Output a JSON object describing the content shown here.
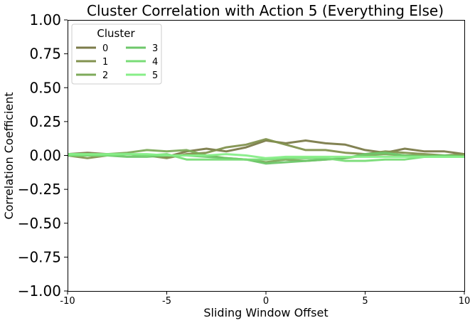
{
  "chart_data": {
    "type": "line",
    "title": "Cluster Correlation with Action 5 (Everything Else)",
    "xlabel": "Sliding Window Offset",
    "ylabel": "Correlation Coefficient",
    "xlim": [
      -10,
      10
    ],
    "ylim": [
      -1.0,
      1.0
    ],
    "xticks": [
      -10,
      -5,
      0,
      5,
      10
    ],
    "xtick_labels": [
      "-10",
      "-5",
      "0",
      "5",
      "10"
    ],
    "yticks": [
      1.0,
      0.75,
      0.5,
      0.25,
      0.0,
      -0.25,
      -0.5,
      -0.75,
      -1.0
    ],
    "ytick_labels": [
      "1.00",
      "0.75",
      "0.50",
      "0.25",
      "0.00",
      "−0.25",
      "−0.50",
      "−0.75",
      "−1.00"
    ],
    "grid": false,
    "legend": {
      "title": "Cluster",
      "placement": "top-left",
      "columns": 2
    },
    "x": [
      -10,
      -9,
      -8,
      -7,
      -6,
      -5,
      -4,
      -3,
      -2,
      -1,
      0,
      1,
      2,
      3,
      4,
      5,
      6,
      7,
      8,
      9,
      10
    ],
    "series": [
      {
        "name": "0",
        "color": "#7b7b4a",
        "values": [
          0.01,
          0.02,
          0.01,
          0.01,
          0.0,
          -0.01,
          0.03,
          0.05,
          0.03,
          0.06,
          0.11,
          0.09,
          0.11,
          0.09,
          0.08,
          0.04,
          0.02,
          0.05,
          0.03,
          0.03,
          0.01
        ]
      },
      {
        "name": "1",
        "color": "#82924f",
        "values": [
          0.0,
          -0.02,
          0.0,
          0.01,
          0.0,
          -0.02,
          0.01,
          0.02,
          0.06,
          0.08,
          0.12,
          0.08,
          0.04,
          0.04,
          0.02,
          0.01,
          0.03,
          0.02,
          0.01,
          0.0,
          0.01
        ]
      },
      {
        "name": "2",
        "color": "#7daa5a",
        "values": [
          0.0,
          0.0,
          0.01,
          0.02,
          0.04,
          0.03,
          0.04,
          0.0,
          -0.02,
          -0.03,
          -0.05,
          -0.03,
          -0.04,
          -0.03,
          -0.02,
          0.0,
          0.01,
          0.0,
          0.0,
          0.0,
          0.0
        ]
      },
      {
        "name": "3",
        "color": "#6ec76a",
        "values": [
          0.01,
          0.01,
          0.0,
          -0.01,
          -0.01,
          0.0,
          0.0,
          -0.01,
          -0.02,
          -0.03,
          -0.06,
          -0.05,
          -0.04,
          -0.03,
          -0.02,
          0.01,
          0.02,
          0.0,
          -0.01,
          0.0,
          -0.01
        ]
      },
      {
        "name": "4",
        "color": "#79dc77",
        "values": [
          0.0,
          0.0,
          0.0,
          0.01,
          0.0,
          0.01,
          -0.03,
          -0.03,
          -0.03,
          -0.03,
          -0.03,
          -0.02,
          -0.02,
          -0.02,
          -0.04,
          -0.04,
          -0.03,
          -0.03,
          -0.01,
          -0.01,
          -0.01
        ]
      },
      {
        "name": "5",
        "color": "#87ee88",
        "values": [
          0.01,
          0.01,
          0.01,
          0.01,
          0.01,
          0.0,
          0.0,
          0.0,
          0.01,
          0.0,
          -0.02,
          -0.01,
          -0.01,
          -0.01,
          -0.01,
          -0.01,
          -0.01,
          -0.01,
          -0.01,
          -0.01,
          -0.01
        ]
      }
    ]
  }
}
